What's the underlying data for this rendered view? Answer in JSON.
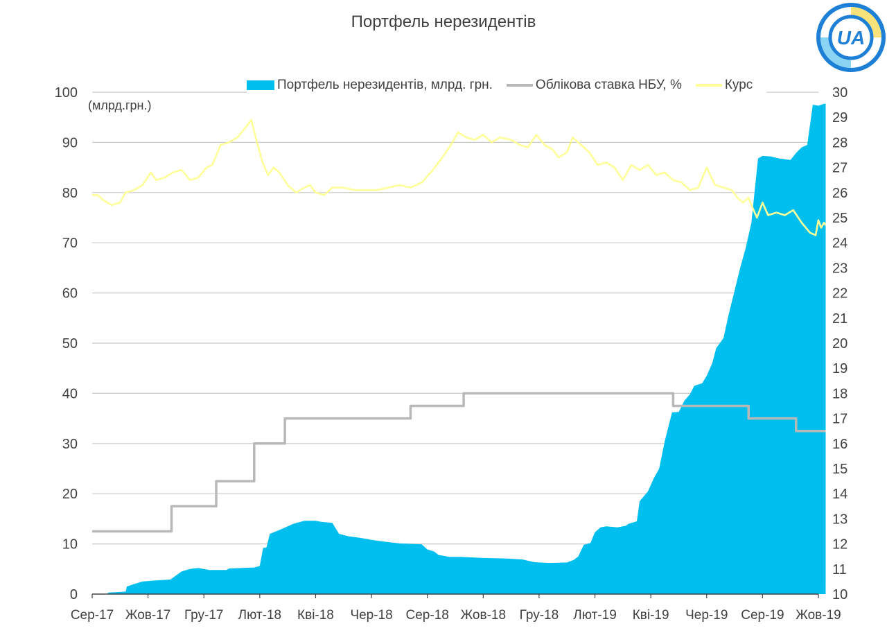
{
  "title": "Портфель нерезидентів",
  "logo_text": "UA",
  "chart_data": {
    "type": "area",
    "unit_label": "(млрд.грн.)",
    "x_tick_labels": [
      "Сер-17",
      "Жов-17",
      "Гру-17",
      "Лют-18",
      "Кві-18",
      "Чер-18",
      "Сер-18",
      "Жов-18",
      "Гру-18",
      "Лют-19",
      "Кві-19",
      "Чер-19",
      "Сер-19",
      "Жов-19"
    ],
    "y_left": {
      "ylim": [
        0,
        100
      ],
      "ticks": [
        "0",
        "10",
        "20",
        "30",
        "40",
        "50",
        "60",
        "70",
        "80",
        "90",
        "100"
      ]
    },
    "y_right": {
      "ylim": [
        10,
        30
      ],
      "ticks": [
        "10",
        "11",
        "12",
        "13",
        "14",
        "15",
        "16",
        "17",
        "18",
        "19",
        "20",
        "21",
        "22",
        "23",
        "24",
        "25",
        "26",
        "27",
        "28",
        "29",
        "30"
      ]
    },
    "grid": true,
    "legend_position": "top",
    "series": [
      {
        "name": "Портфель нерезидентів, млрд. грн.",
        "axis": "left",
        "kind": "area",
        "color": "#00BFEF",
        "points": [
          [
            0,
            0
          ],
          [
            0.25,
            0
          ],
          [
            0.3,
            0.3
          ],
          [
            0.6,
            0.5
          ],
          [
            0.62,
            1.5
          ],
          [
            0.75,
            2
          ],
          [
            0.9,
            2.5
          ],
          [
            1.1,
            2.7
          ],
          [
            1.4,
            2.9
          ],
          [
            1.45,
            3.3
          ],
          [
            1.6,
            4.5
          ],
          [
            1.75,
            5
          ],
          [
            1.9,
            5.2
          ],
          [
            2.1,
            4.8
          ],
          [
            2.4,
            4.8
          ],
          [
            2.45,
            5.1
          ],
          [
            2.9,
            5.3
          ],
          [
            3.0,
            5.6
          ],
          [
            3.06,
            9.2
          ],
          [
            3.12,
            9.3
          ],
          [
            3.18,
            12
          ],
          [
            3.4,
            13
          ],
          [
            3.6,
            14
          ],
          [
            3.8,
            14.6
          ],
          [
            4.0,
            14.6
          ],
          [
            4.1,
            14.4
          ],
          [
            4.3,
            14.2
          ],
          [
            4.42,
            12
          ],
          [
            4.6,
            11.5
          ],
          [
            4.8,
            11.2
          ],
          [
            5.0,
            10.8
          ],
          [
            5.2,
            10.5
          ],
          [
            5.5,
            10.1
          ],
          [
            5.9,
            9.9
          ],
          [
            6.0,
            8.9
          ],
          [
            6.12,
            8.5
          ],
          [
            6.2,
            7.8
          ],
          [
            6.4,
            7.4
          ],
          [
            6.6,
            7.4
          ],
          [
            7.0,
            7.2
          ],
          [
            7.4,
            7.1
          ],
          [
            7.7,
            6.9
          ],
          [
            7.9,
            6.4
          ],
          [
            8.0,
            6.3
          ],
          [
            8.2,
            6.2
          ],
          [
            8.5,
            6.3
          ],
          [
            8.62,
            6.8
          ],
          [
            8.7,
            7.5
          ],
          [
            8.8,
            9.8
          ],
          [
            8.92,
            10.2
          ],
          [
            9.0,
            12.3
          ],
          [
            9.1,
            13.3
          ],
          [
            9.2,
            13.5
          ],
          [
            9.4,
            13.3
          ],
          [
            9.55,
            13.6
          ],
          [
            9.6,
            14
          ],
          [
            9.75,
            14.5
          ],
          [
            9.8,
            18.5
          ],
          [
            9.95,
            20.5
          ],
          [
            10.05,
            23
          ],
          [
            10.15,
            25
          ],
          [
            10.25,
            30.5
          ],
          [
            10.38,
            36.2
          ],
          [
            10.5,
            36.3
          ],
          [
            10.6,
            38.5
          ],
          [
            10.7,
            39.8
          ],
          [
            10.78,
            41.5
          ],
          [
            10.92,
            42
          ],
          [
            11.0,
            43.5
          ],
          [
            11.1,
            46
          ],
          [
            11.17,
            49
          ],
          [
            11.3,
            51
          ],
          [
            11.4,
            56
          ],
          [
            11.5,
            60.5
          ],
          [
            11.6,
            65
          ],
          [
            11.7,
            69
          ],
          [
            11.8,
            74
          ],
          [
            11.92,
            86.8
          ],
          [
            12.0,
            87.3
          ],
          [
            12.15,
            87.2
          ],
          [
            12.3,
            86.8
          ],
          [
            12.5,
            86.5
          ],
          [
            12.6,
            87.9
          ],
          [
            12.7,
            89
          ],
          [
            12.8,
            89.5
          ],
          [
            12.9,
            97.5
          ],
          [
            13.0,
            97.3
          ],
          [
            13.1,
            97.7
          ],
          [
            13.13,
            97.7
          ]
        ]
      },
      {
        "name": "Облікова ставка НБУ, %",
        "axis": "right",
        "kind": "step",
        "color": "#B8B8B8",
        "points": [
          [
            0,
            12.5
          ],
          [
            1.42,
            12.5
          ],
          [
            1.42,
            13.5
          ],
          [
            2.22,
            13.5
          ],
          [
            2.22,
            14.5
          ],
          [
            2.9,
            14.5
          ],
          [
            2.9,
            16
          ],
          [
            3.45,
            16
          ],
          [
            3.45,
            17
          ],
          [
            5.7,
            17
          ],
          [
            5.7,
            17.5
          ],
          [
            6.65,
            17.5
          ],
          [
            6.65,
            18
          ],
          [
            10.4,
            18
          ],
          [
            10.4,
            17.5
          ],
          [
            11.75,
            17.5
          ],
          [
            11.75,
            17
          ],
          [
            12.6,
            17
          ],
          [
            12.6,
            16.5
          ],
          [
            13.13,
            16.5
          ]
        ]
      },
      {
        "name": "Курс",
        "axis": "right",
        "kind": "line",
        "color": "#FFFF99",
        "points": [
          [
            0,
            25.9
          ],
          [
            0.1,
            25.9
          ],
          [
            0.2,
            25.7
          ],
          [
            0.35,
            25.5
          ],
          [
            0.5,
            25.6
          ],
          [
            0.6,
            26
          ],
          [
            0.75,
            26.1
          ],
          [
            0.9,
            26.3
          ],
          [
            1.05,
            26.8
          ],
          [
            1.15,
            26.5
          ],
          [
            1.3,
            26.6
          ],
          [
            1.45,
            26.8
          ],
          [
            1.6,
            26.9
          ],
          [
            1.75,
            26.5
          ],
          [
            1.9,
            26.6
          ],
          [
            2.05,
            27
          ],
          [
            2.15,
            27.1
          ],
          [
            2.3,
            27.9
          ],
          [
            2.45,
            28
          ],
          [
            2.6,
            28.2
          ],
          [
            2.75,
            28.6
          ],
          [
            2.85,
            28.9
          ],
          [
            2.95,
            28
          ],
          [
            3.05,
            27.2
          ],
          [
            3.15,
            26.7
          ],
          [
            3.25,
            27
          ],
          [
            3.35,
            26.8
          ],
          [
            3.5,
            26.3
          ],
          [
            3.65,
            26
          ],
          [
            3.8,
            26.2
          ],
          [
            3.9,
            26.3
          ],
          [
            4.0,
            26
          ],
          [
            4.15,
            25.9
          ],
          [
            4.3,
            26.2
          ],
          [
            4.5,
            26.2
          ],
          [
            4.7,
            26.1
          ],
          [
            4.9,
            26.1
          ],
          [
            5.1,
            26.1
          ],
          [
            5.3,
            26.2
          ],
          [
            5.5,
            26.3
          ],
          [
            5.7,
            26.2
          ],
          [
            5.9,
            26.4
          ],
          [
            6.1,
            26.9
          ],
          [
            6.3,
            27.5
          ],
          [
            6.45,
            28
          ],
          [
            6.55,
            28.4
          ],
          [
            6.7,
            28.2
          ],
          [
            6.85,
            28.1
          ],
          [
            7.0,
            28.3
          ],
          [
            7.15,
            28
          ],
          [
            7.3,
            28.2
          ],
          [
            7.5,
            28.1
          ],
          [
            7.65,
            27.9
          ],
          [
            7.8,
            27.8
          ],
          [
            7.95,
            28.3
          ],
          [
            8.1,
            27.9
          ],
          [
            8.25,
            27.7
          ],
          [
            8.35,
            27.4
          ],
          [
            8.5,
            27.6
          ],
          [
            8.6,
            28.2
          ],
          [
            8.75,
            27.9
          ],
          [
            8.9,
            27.6
          ],
          [
            9.05,
            27.1
          ],
          [
            9.2,
            27.2
          ],
          [
            9.35,
            27
          ],
          [
            9.5,
            26.5
          ],
          [
            9.65,
            27.1
          ],
          [
            9.8,
            26.9
          ],
          [
            9.95,
            27.1
          ],
          [
            10.1,
            26.7
          ],
          [
            10.25,
            26.8
          ],
          [
            10.4,
            26.5
          ],
          [
            10.55,
            26.4
          ],
          [
            10.7,
            26.1
          ],
          [
            10.85,
            26.2
          ],
          [
            11.0,
            27
          ],
          [
            11.15,
            26.3
          ],
          [
            11.3,
            26.2
          ],
          [
            11.45,
            26.1
          ],
          [
            11.55,
            25.8
          ],
          [
            11.65,
            25.6
          ],
          [
            11.75,
            25.8
          ],
          [
            11.82,
            25.4
          ],
          [
            11.9,
            25
          ],
          [
            12.0,
            25.6
          ],
          [
            12.1,
            25.1
          ],
          [
            12.25,
            25.2
          ],
          [
            12.4,
            25.1
          ],
          [
            12.55,
            25.3
          ],
          [
            12.7,
            24.8
          ],
          [
            12.85,
            24.4
          ],
          [
            12.95,
            24.3
          ],
          [
            13.0,
            24.9
          ],
          [
            13.05,
            24.6
          ],
          [
            13.1,
            24.8
          ],
          [
            13.13,
            24.7
          ]
        ]
      }
    ]
  }
}
